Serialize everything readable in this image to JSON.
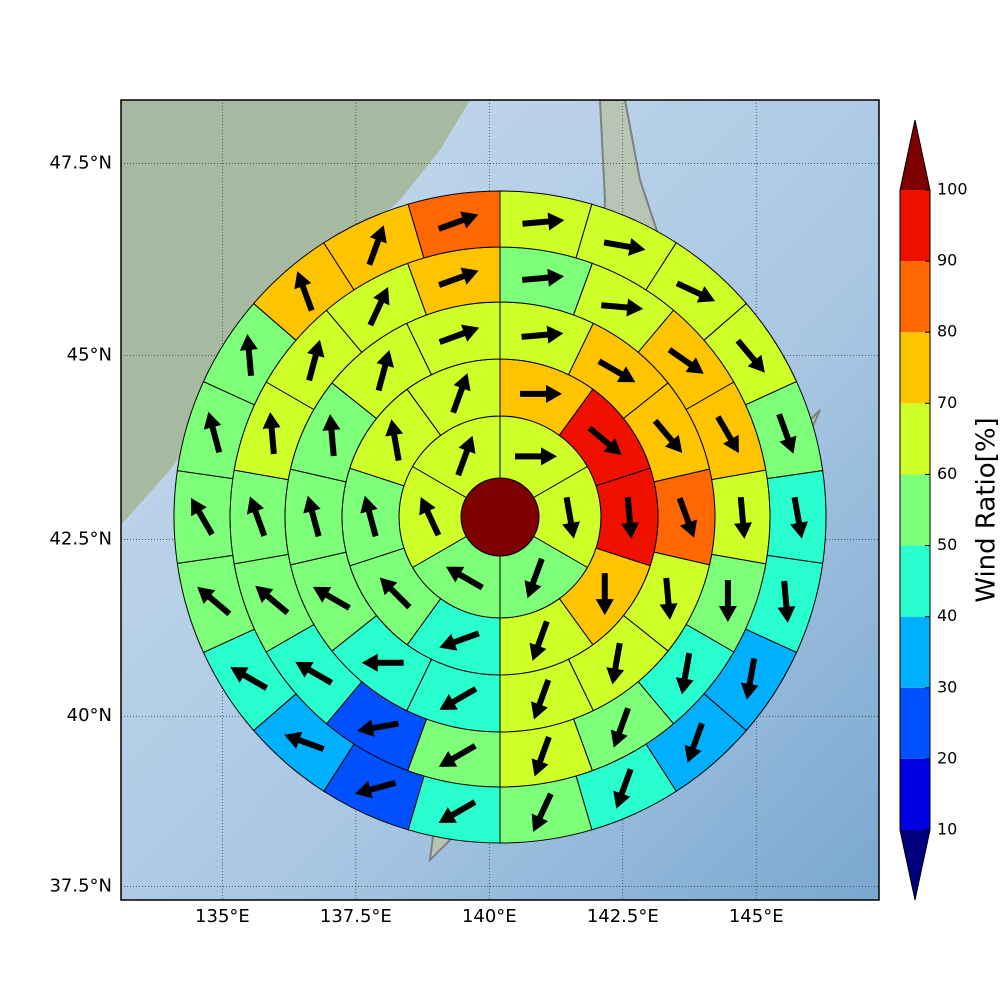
{
  "chart_data": {
    "type": "polar-grid",
    "colorbar_label": "Wind Ratio[%]",
    "xlim": [
      133.1,
      147.3
    ],
    "ylim": [
      37.3,
      48.3
    ],
    "xticks": [
      {
        "value": 135,
        "label": "135°E"
      },
      {
        "value": 137.5,
        "label": "137.5°E"
      },
      {
        "value": 140,
        "label": "140°E"
      },
      {
        "value": 142.5,
        "label": "142.5°E"
      },
      {
        "value": 145,
        "label": "145°E"
      }
    ],
    "yticks": [
      {
        "value": 37.5,
        "label": "37.5°N"
      },
      {
        "value": 40,
        "label": "40°N"
      },
      {
        "value": 42.5,
        "label": "42.5°N"
      },
      {
        "value": 45,
        "label": "45°N"
      },
      {
        "value": 47.5,
        "label": "47.5°N"
      }
    ],
    "grid": true,
    "levels": [
      10,
      20,
      30,
      40,
      50,
      60,
      70,
      80,
      90,
      100
    ],
    "colors": [
      "#00007f",
      "#0000e0",
      "#0050ff",
      "#00b0ff",
      "#29ffce",
      "#7dff7a",
      "#ceff29",
      "#ffc400",
      "#ff6800",
      "#f01000",
      "#7f0000"
    ],
    "center_value": 105,
    "rings": [
      {
        "values": [
          65,
          65,
          55,
          55,
          65,
          65
        ],
        "directions": [
          90,
          170,
          200,
          300,
          335,
          20
        ]
      },
      {
        "values": [
          75,
          95,
          95,
          75,
          65,
          45,
          55,
          55,
          65,
          65
        ],
        "directions": [
          90,
          130,
          175,
          180,
          200,
          250,
          315,
          345,
          350,
          20
        ]
      },
      {
        "values": [
          65,
          75,
          75,
          85,
          65,
          65,
          65,
          45,
          45,
          55,
          55,
          55,
          65,
          65
        ],
        "directions": [
          85,
          120,
          140,
          160,
          175,
          190,
          200,
          240,
          270,
          300,
          345,
          355,
          15,
          70
        ]
      },
      {
        "values": [
          55,
          65,
          75,
          75,
          65,
          55,
          45,
          55,
          65,
          55,
          25,
          45,
          55,
          55,
          65,
          65,
          65,
          75
        ],
        "directions": [
          85,
          95,
          125,
          150,
          175,
          180,
          190,
          200,
          200,
          240,
          260,
          300,
          310,
          340,
          355,
          15,
          25,
          70
        ]
      },
      {
        "values": [
          65,
          65,
          65,
          65,
          55,
          45,
          45,
          35,
          35,
          45,
          55,
          45,
          25,
          35,
          45,
          55,
          55,
          55,
          55,
          75,
          75,
          85
        ],
        "directions": [
          85,
          100,
          115,
          140,
          160,
          170,
          175,
          190,
          200,
          200,
          205,
          240,
          255,
          290,
          300,
          310,
          330,
          345,
          355,
          340,
          20,
          70
        ]
      }
    ]
  }
}
